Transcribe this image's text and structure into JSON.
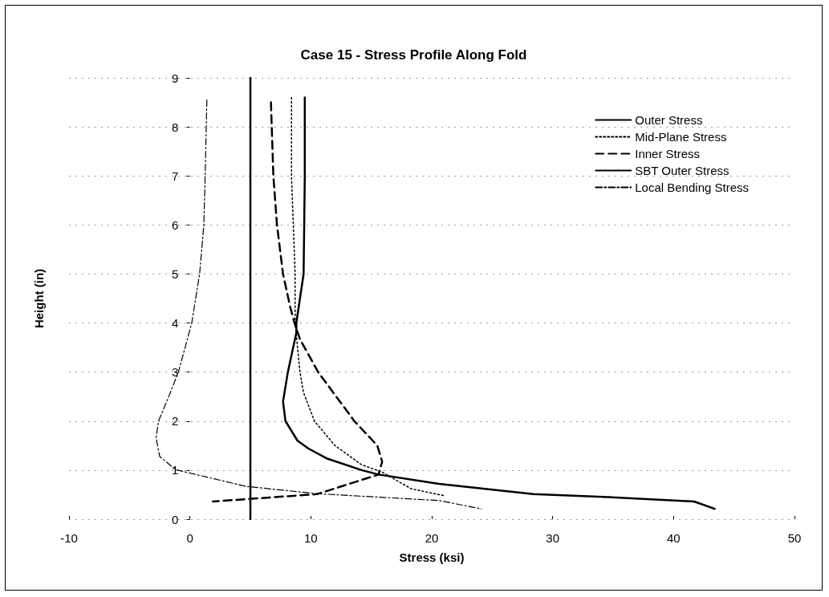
{
  "chart_data": {
    "type": "line",
    "title": "Case 15 - Stress Profile Along Fold",
    "xlabel": "Stress (ksi)",
    "ylabel": "Height (in)",
    "xlim": [
      -10,
      50
    ],
    "xticks": [
      -10,
      0,
      10,
      20,
      30,
      40,
      50
    ],
    "ylim": [
      0,
      9
    ],
    "yticks": [
      0,
      1,
      2,
      3,
      4,
      5,
      6,
      7,
      8,
      9
    ],
    "grid": "y",
    "legend": "top right",
    "marker": "none",
    "series": [
      {
        "name": "Outer Stress",
        "color": "#000000",
        "line_style": "solid",
        "x": [
          9.5,
          9.5,
          9.4,
          8.8,
          8.8,
          8.1,
          7.7,
          7.9,
          8.9,
          9.8,
          11.3,
          14.2,
          15.6,
          20.6,
          28.4,
          33.8,
          41.7,
          43.4
        ],
        "values": [
          8.6,
          7,
          5,
          4,
          3.8,
          3,
          2.4,
          2,
          1.6,
          1.44,
          1.24,
          1,
          0.91,
          0.72,
          0.51,
          0.46,
          0.36,
          0.21
        ]
      },
      {
        "name": "Mid-Plane Stress",
        "color": "#000000",
        "line_style": "dotted",
        "x": [
          8.4,
          8.4,
          8.7,
          8.7,
          9.1,
          9.4,
          10.3,
          12,
          14.2,
          15.9,
          18.3,
          21
        ],
        "values": [
          8.6,
          7,
          5,
          4,
          3,
          2.58,
          2,
          1.5,
          1.11,
          0.96,
          0.62,
          0.48
        ]
      },
      {
        "name": "Inner Stress",
        "color": "#000000",
        "line_style": "dashed",
        "x": [
          6.7,
          6.9,
          7.2,
          7.7,
          8.3,
          8.65,
          9.1,
          10.6,
          13.6,
          15.5,
          15.9,
          15.8,
          15.6,
          10.5,
          1.9
        ],
        "values": [
          8.5,
          7,
          6,
          5,
          4.32,
          4,
          3.67,
          3,
          2,
          1.5,
          1.17,
          1.09,
          0.91,
          0.51,
          0.36
        ]
      },
      {
        "name": "SBT Outer Stress",
        "color": "#000000",
        "line_style": "solid",
        "x": [
          5,
          5
        ],
        "values": [
          0,
          9
        ]
      },
      {
        "name": "Local Bending Stress",
        "color": "#000000",
        "line_style": "dashdot",
        "x": [
          1.4,
          1.26,
          1.15,
          0.8,
          0.15,
          -0.95,
          -1.8,
          -2.6,
          -2.8,
          -2.5,
          -1.2,
          4.6,
          10.5,
          20.6,
          24.1
        ],
        "values": [
          8.55,
          7,
          6,
          5,
          4,
          3,
          2.47,
          2,
          1.66,
          1.28,
          1.01,
          0.67,
          0.52,
          0.38,
          0.21
        ]
      }
    ]
  }
}
